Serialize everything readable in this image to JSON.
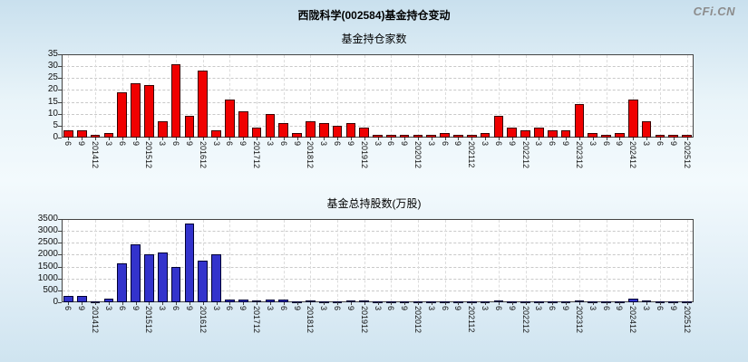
{
  "page": {
    "title": "西陇科学(002584)基金持仓变动",
    "watermark": "CFi.CN"
  },
  "colors": {
    "background": "#d8eaf4",
    "plot_background": "#ffffff",
    "axis": "#444444",
    "grid": "#c9c9c9",
    "fund_count_bar": "#f00000",
    "fund_count_bar_border": "#3a0000",
    "fund_shares_bar": "#3333cc",
    "fund_shares_bar_border": "#000033"
  },
  "chart_data": [
    {
      "type": "bar",
      "title": "基金持仓家数",
      "xlabel": "",
      "ylabel": "",
      "ylim": [
        0,
        35
      ],
      "ytick_interval": 5,
      "yticks": [
        0,
        5,
        10,
        15,
        20,
        25,
        30,
        35
      ],
      "grid": true,
      "legend": "none",
      "bar_color": "#f00000",
      "bar_border": "#3a0000",
      "categories": [
        "6",
        "9",
        "201412",
        "3",
        "6",
        "9",
        "201512",
        "3",
        "6",
        "9",
        "201612",
        "3",
        "6",
        "9",
        "201712",
        "3",
        "6",
        "9",
        "201812",
        "3",
        "6",
        "9",
        "201912",
        "3",
        "6",
        "9",
        "202012",
        "3",
        "6",
        "9",
        "202112",
        "3",
        "6",
        "9",
        "202212",
        "3",
        "6",
        "9",
        "202312",
        "3",
        "6",
        "9",
        "202412",
        "3",
        "6",
        "9",
        "202512"
      ],
      "values": [
        3,
        3,
        1,
        2,
        19,
        23,
        22,
        7,
        31,
        9,
        28,
        3,
        16,
        11,
        4,
        10,
        6,
        2,
        7,
        6,
        5,
        6,
        4,
        1,
        1,
        1,
        1,
        1,
        2,
        1,
        1,
        2,
        9,
        4,
        3,
        4,
        3,
        3,
        14,
        2,
        1,
        2,
        16,
        7,
        1,
        1,
        1
      ]
    },
    {
      "type": "bar",
      "title": "基金总持股数(万股)",
      "xlabel": "",
      "ylabel": "",
      "ylim": [
        0,
        3500
      ],
      "ytick_interval": 500,
      "yticks": [
        0,
        500,
        1000,
        1500,
        2000,
        2500,
        3000,
        3500
      ],
      "grid": true,
      "legend": "none",
      "bar_color": "#3333cc",
      "bar_border": "#000033",
      "categories": [
        "6",
        "9",
        "201412",
        "3",
        "6",
        "9",
        "201512",
        "3",
        "6",
        "9",
        "201612",
        "3",
        "6",
        "9",
        "201712",
        "3",
        "6",
        "9",
        "201812",
        "3",
        "6",
        "9",
        "201912",
        "3",
        "6",
        "9",
        "202012",
        "3",
        "6",
        "9",
        "202112",
        "3",
        "6",
        "9",
        "202212",
        "3",
        "6",
        "9",
        "202312",
        "3",
        "6",
        "9",
        "202412",
        "3",
        "6",
        "9",
        "202512"
      ],
      "values": [
        280,
        260,
        50,
        150,
        1650,
        2450,
        2000,
        2100,
        1500,
        3300,
        1750,
        2000,
        120,
        100,
        60,
        100,
        130,
        30,
        60,
        50,
        40,
        60,
        70,
        20,
        10,
        10,
        15,
        10,
        20,
        10,
        15,
        20,
        90,
        50,
        40,
        50,
        30,
        40,
        90,
        20,
        20,
        30,
        160,
        60,
        10,
        10,
        10
      ]
    }
  ]
}
